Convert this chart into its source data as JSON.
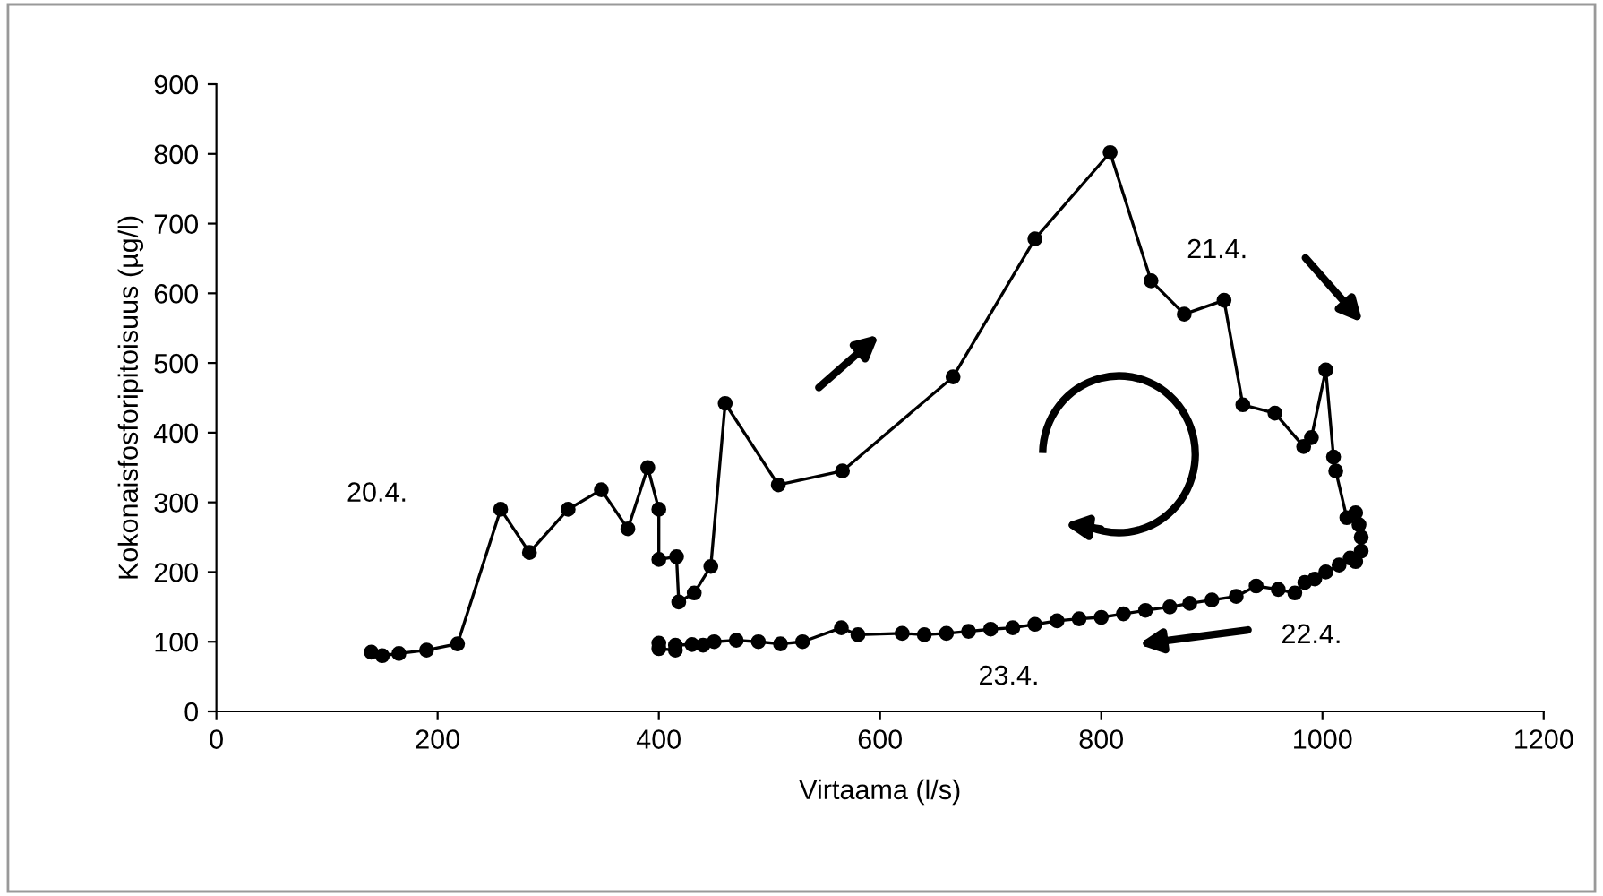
{
  "chart_data": {
    "type": "line",
    "xlabel": "Virtaama (l/s)",
    "ylabel": "Kokonaisfosforipitoisuus (µg/l)",
    "xlim": [
      0,
      1200
    ],
    "ylim": [
      0,
      900
    ],
    "xticks": [
      0,
      200,
      400,
      600,
      800,
      1000,
      1200
    ],
    "yticks": [
      0,
      100,
      200,
      300,
      400,
      500,
      600,
      700,
      800,
      900
    ],
    "grid": false,
    "marker": "circle",
    "line_style": "solid",
    "series": [
      {
        "color": "#000000",
        "x": [
          140,
          150,
          165,
          190,
          218,
          257,
          283,
          318,
          348,
          372,
          390,
          400,
          400,
          416,
          418,
          432,
          447,
          460,
          508,
          566,
          666,
          740,
          808,
          845,
          875,
          911,
          928,
          957,
          983,
          990,
          1003,
          1010,
          1012,
          1022,
          1030,
          1033,
          1035,
          1035,
          1030,
          1025,
          1015,
          1003,
          993,
          984,
          975,
          960,
          940,
          922,
          900,
          880,
          862,
          840,
          820,
          800,
          780,
          760,
          740,
          720,
          700,
          680,
          660,
          640,
          620,
          580,
          565,
          530,
          510,
          490,
          470,
          450,
          440,
          430,
          415,
          415,
          400,
          400
        ],
        "values": [
          85,
          80,
          83,
          88,
          97,
          290,
          228,
          290,
          318,
          262,
          350,
          290,
          218,
          222,
          157,
          170,
          208,
          442,
          325,
          345,
          480,
          678,
          802,
          618,
          570,
          590,
          440,
          428,
          380,
          393,
          490,
          365,
          345,
          278,
          285,
          268,
          250,
          230,
          215,
          220,
          210,
          200,
          190,
          185,
          170,
          175,
          180,
          165,
          160,
          155,
          150,
          145,
          140,
          135,
          133,
          130,
          125,
          120,
          118,
          115,
          112,
          110,
          112,
          110,
          120,
          100,
          97,
          100,
          102,
          100,
          95,
          96,
          95,
          88,
          90,
          98
        ]
      }
    ],
    "annotations": [
      "20.4.",
      "21.4.",
      "22.4.",
      "23.4."
    ]
  }
}
